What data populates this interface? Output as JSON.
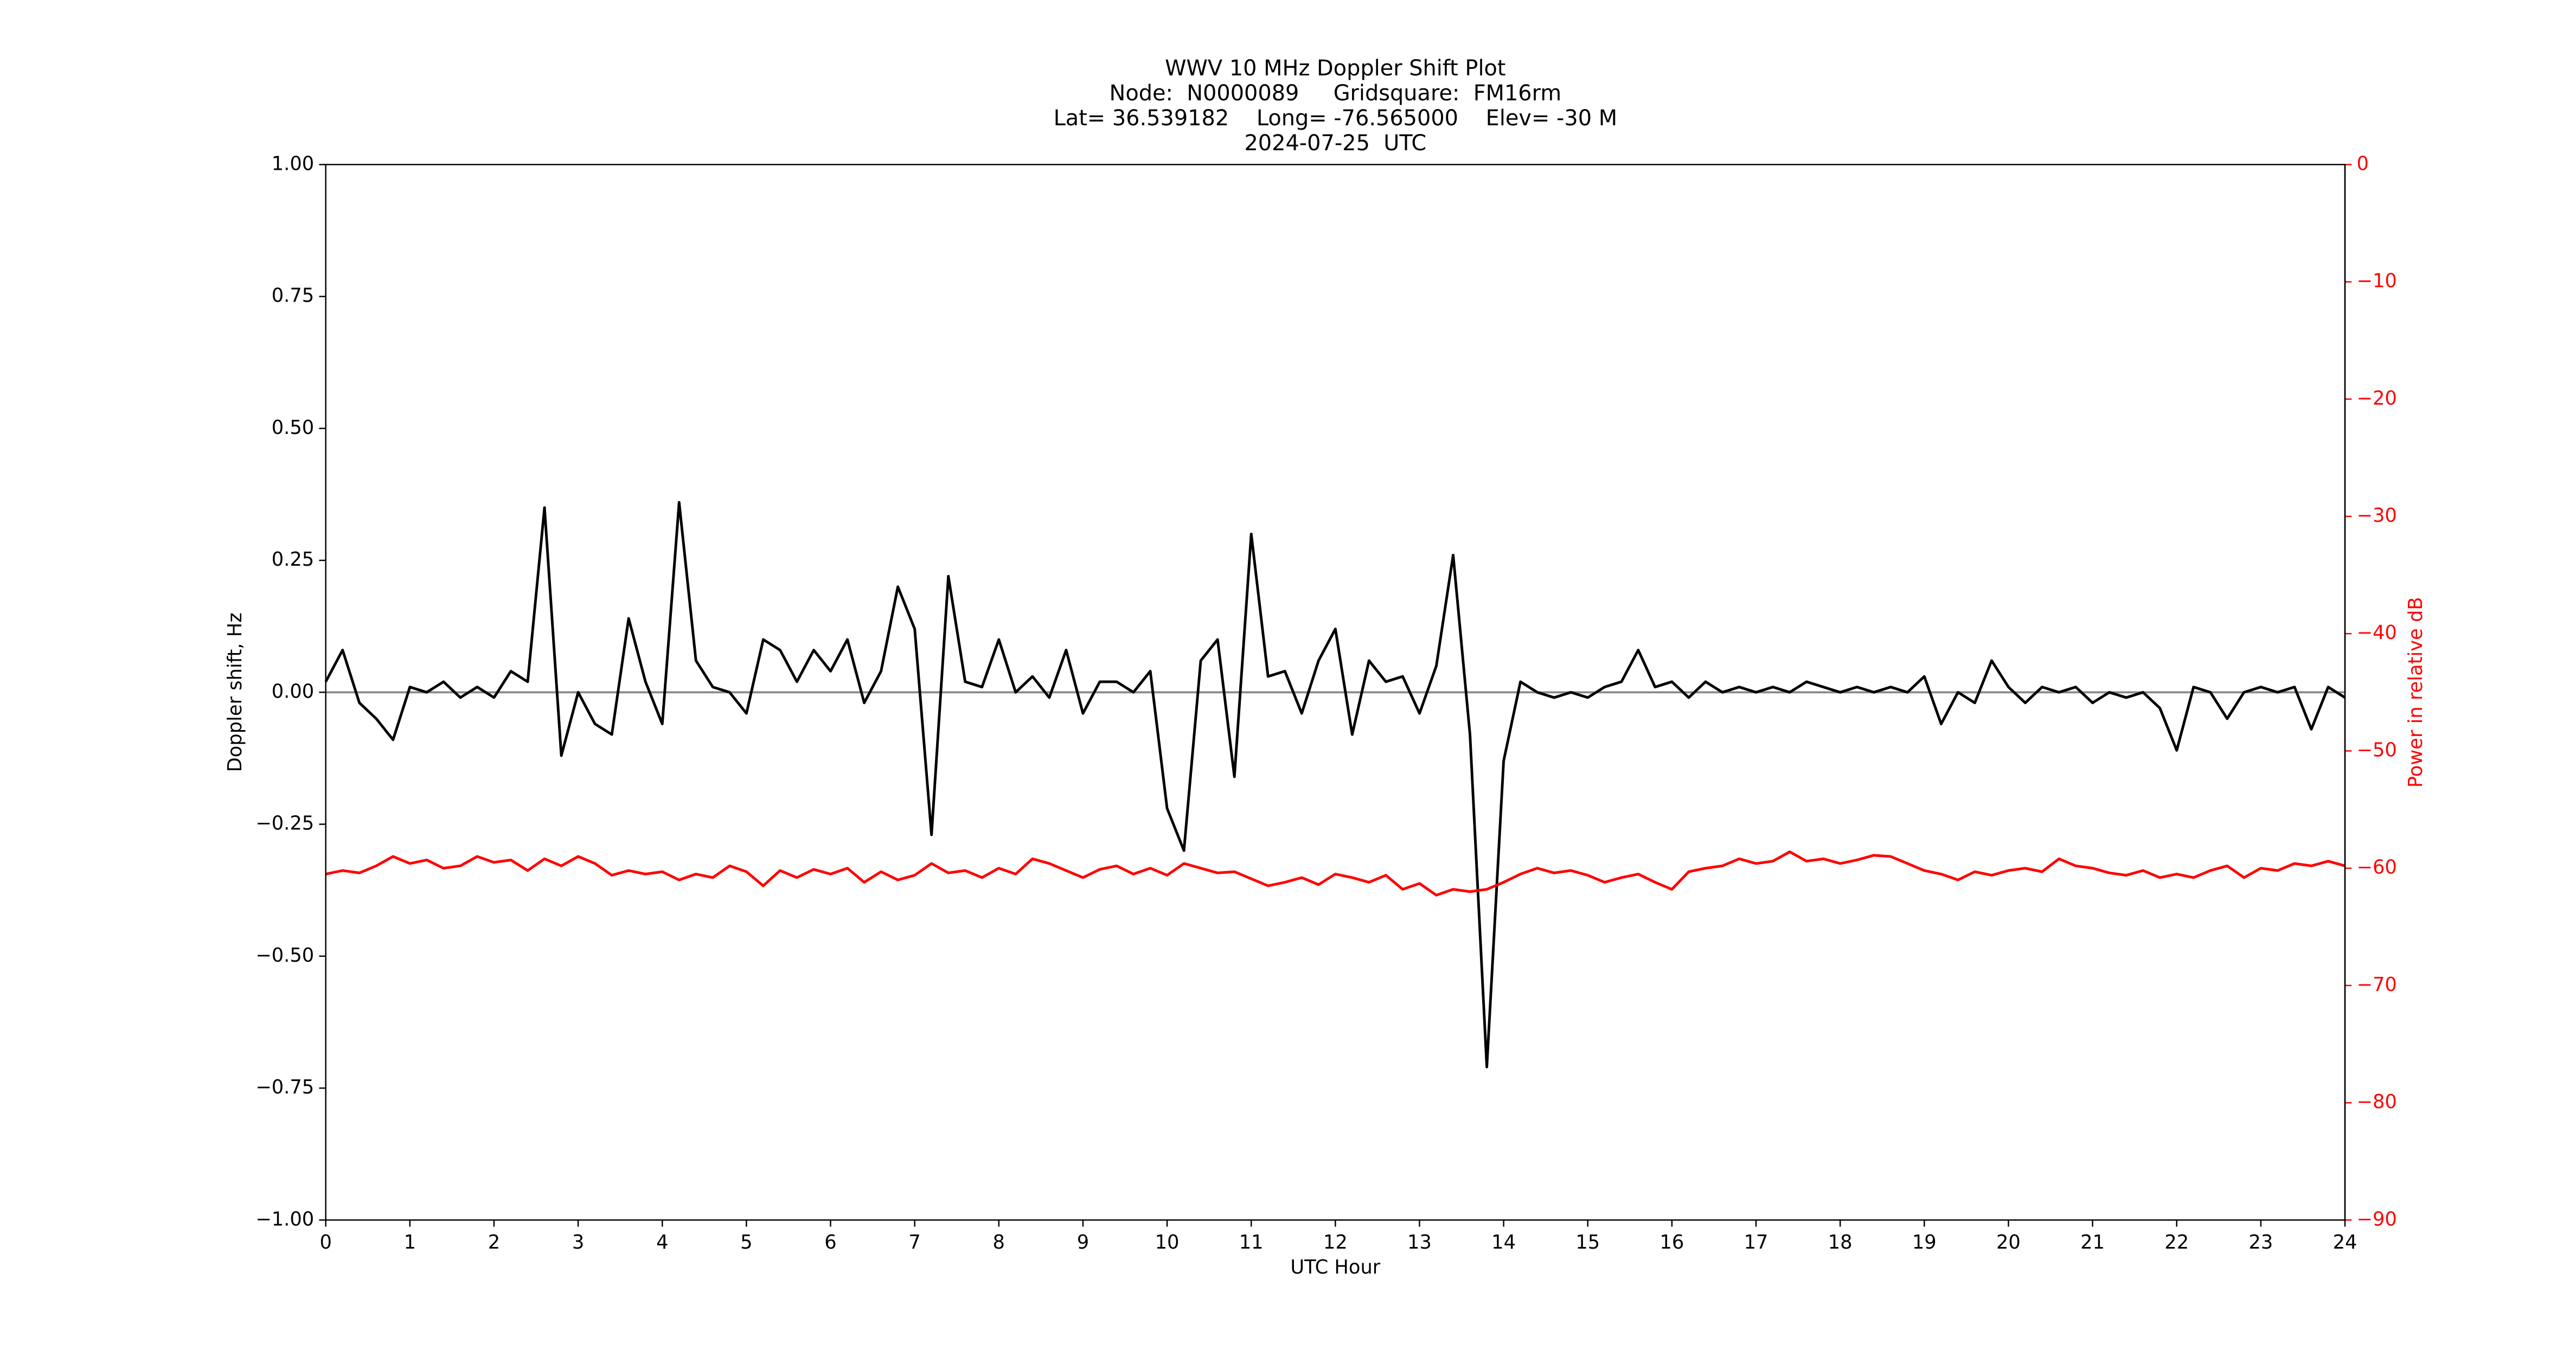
{
  "chart_data": {
    "type": "line",
    "title": [
      "WWV 10 MHz Doppler Shift Plot",
      "Node:  N0000089     Gridsquare:  FM16rm",
      "Lat= 36.539182    Long= -76.565000    Elev= -30 M",
      "2024-07-25  UTC"
    ],
    "xlabel": "UTC Hour",
    "ylabel": "Doppler shift, Hz",
    "y2label": "Power in relative dB",
    "y2color": "#ff0000",
    "xlim": [
      0,
      24
    ],
    "xticks": [
      0,
      1,
      2,
      3,
      4,
      5,
      6,
      7,
      8,
      9,
      10,
      11,
      12,
      13,
      14,
      15,
      16,
      17,
      18,
      19,
      20,
      21,
      22,
      23,
      24
    ],
    "ylim": [
      -1,
      1
    ],
    "yticks": [
      {
        "value": -1,
        "label": "−1.00"
      },
      {
        "value": -0.75,
        "label": "−0.75"
      },
      {
        "value": -0.5,
        "label": "−0.50"
      },
      {
        "value": -0.25,
        "label": "−0.25"
      },
      {
        "value": 0,
        "label": "0.00"
      },
      {
        "value": 0.25,
        "label": "0.25"
      },
      {
        "value": 0.5,
        "label": "0.50"
      },
      {
        "value": 0.75,
        "label": "0.75"
      },
      {
        "value": 1,
        "label": "1.00"
      }
    ],
    "y2lim": [
      -90,
      0
    ],
    "y2ticks": [
      {
        "value": -90,
        "label": "−90"
      },
      {
        "value": -80,
        "label": "−80"
      },
      {
        "value": -70,
        "label": "−70"
      },
      {
        "value": -60,
        "label": "−60"
      },
      {
        "value": -50,
        "label": "−50"
      },
      {
        "value": -40,
        "label": "−40"
      },
      {
        "value": -30,
        "label": "−30"
      },
      {
        "value": -20,
        "label": "−20"
      },
      {
        "value": -10,
        "label": "−10"
      },
      0
    ],
    "x": [
      0,
      0.2,
      0.4,
      0.6,
      0.8,
      1,
      1.2,
      1.4,
      1.6,
      1.8,
      2,
      2.2,
      2.4,
      2.6,
      2.8,
      3,
      3.2,
      3.4,
      3.6,
      3.8,
      4,
      4.2,
      4.4,
      4.6,
      4.8,
      5,
      5.2,
      5.4,
      5.6,
      5.8,
      6,
      6.2,
      6.4,
      6.6,
      6.8,
      7,
      7.2,
      7.4,
      7.6,
      7.8,
      8,
      8.2,
      8.4,
      8.6,
      8.8,
      9,
      9.2,
      9.4,
      9.6,
      9.8,
      10,
      10.2,
      10.4,
      10.6,
      10.8,
      11,
      11.2,
      11.4,
      11.6,
      11.8,
      12,
      12.2,
      12.4,
      12.6,
      12.8,
      13,
      13.2,
      13.4,
      13.6,
      13.8,
      14,
      14.2,
      14.4,
      14.6,
      14.8,
      15,
      15.2,
      15.4,
      15.6,
      15.8,
      16,
      16.2,
      16.4,
      16.6,
      16.8,
      17,
      17.2,
      17.4,
      17.6,
      17.8,
      18,
      18.2,
      18.4,
      18.6,
      18.8,
      19,
      19.2,
      19.4,
      19.6,
      19.8,
      20,
      20.2,
      20.4,
      20.6,
      20.8,
      21,
      21.2,
      21.4,
      21.6,
      21.8,
      22,
      22.2,
      22.4,
      22.6,
      22.8,
      23,
      23.2,
      23.4,
      23.6,
      23.8,
      24
    ],
    "series": [
      {
        "color": "#000000",
        "values": [
          0.02,
          0.08,
          -0.02,
          -0.05,
          -0.09,
          0.01,
          0,
          0.02,
          -0.01,
          0.01,
          -0.01,
          0.04,
          0.02,
          0.35,
          -0.12,
          0,
          -0.06,
          -0.08,
          0.14,
          0.02,
          -0.06,
          0.36,
          0.06,
          0.01,
          0,
          -0.04,
          0.1,
          0.08,
          0.02,
          0.08,
          0.04,
          0.1,
          -0.02,
          0.04,
          0.2,
          0.12,
          -0.27,
          0.22,
          0.02,
          0.01,
          0.1,
          0,
          0.03,
          -0.01,
          0.08,
          -0.04,
          0.02,
          0.02,
          0,
          0.04,
          -0.22,
          -0.3,
          0.06,
          0.1,
          -0.16,
          0.3,
          0.03,
          0.04,
          -0.04,
          0.06,
          0.12,
          -0.08,
          0.06,
          0.02,
          0.03,
          -0.04,
          0.05,
          0.26,
          -0.08,
          -0.71,
          -0.13,
          0.02,
          0,
          -0.01,
          0,
          -0.01,
          0.01,
          0.02,
          0.08,
          0.01,
          0.02,
          -0.01,
          0.02,
          0,
          0.01,
          0,
          0.01,
          0,
          0.02,
          0.01,
          0,
          0.01,
          0,
          0.01,
          0,
          0.03,
          -0.06,
          0,
          -0.02,
          0.06,
          0.01,
          -0.02,
          0.01,
          0,
          0.01,
          -0.02,
          0,
          -0.01,
          0,
          -0.03,
          -0.11,
          0.01,
          0,
          -0.05,
          0,
          0.01,
          0,
          0.01,
          -0.07,
          0.01,
          -0.01
        ]
      },
      {
        "color": "#ff0000",
        "axis": "y2",
        "values": [
          -60.5,
          -60.2,
          -60.4,
          -59.8,
          -59,
          -59.6,
          -59.3,
          -60,
          -59.8,
          -59,
          -59.5,
          -59.3,
          -60.2,
          -59.2,
          -59.8,
          -59,
          -59.6,
          -60.6,
          -60.2,
          -60.5,
          -60.3,
          -61,
          -60.5,
          -60.8,
          -59.8,
          -60.3,
          -61.5,
          -60.2,
          -60.8,
          -60.1,
          -60.5,
          -60,
          -61.2,
          -60.3,
          -61,
          -60.6,
          -59.6,
          -60.4,
          -60.2,
          -60.8,
          -60,
          -60.5,
          -59.2,
          -59.6,
          -60.2,
          -60.8,
          -60.1,
          -59.8,
          -60.5,
          -60,
          -60.6,
          -59.6,
          -60,
          -60.4,
          -60.3,
          -60.9,
          -61.5,
          -61.2,
          -60.8,
          -61.4,
          -60.5,
          -60.8,
          -61.2,
          -60.6,
          -61.8,
          -61.3,
          -62.3,
          -61.8,
          -62,
          -61.8,
          -61.2,
          -60.5,
          -60,
          -60.4,
          -60.2,
          -60.6,
          -61.2,
          -60.8,
          -60.5,
          -61.2,
          -61.8,
          -60.3,
          -60,
          -59.8,
          -59.2,
          -59.6,
          -59.4,
          -58.6,
          -59.4,
          -59.2,
          -59.6,
          -59.3,
          -58.9,
          -59,
          -59.6,
          -60.2,
          -60.5,
          -61,
          -60.3,
          -60.6,
          -60.2,
          -60,
          -60.3,
          -59.2,
          -59.8,
          -60,
          -60.4,
          -60.6,
          -60.2,
          -60.8,
          -60.5,
          -60.8,
          -60.2,
          -59.8,
          -60.8,
          -60,
          -60.2,
          -59.6,
          -59.8,
          -59.4,
          -59.8
        ]
      }
    ]
  }
}
